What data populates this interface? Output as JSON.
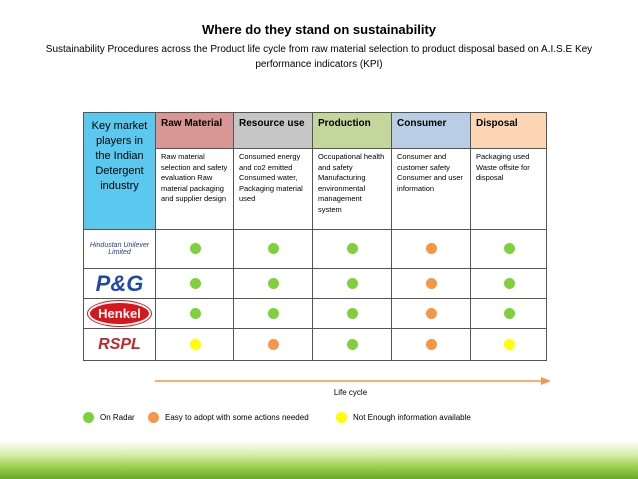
{
  "title": "Where do they stand on sustainability",
  "subtitle": "Sustainability Procedures across the Product life cycle from raw material selection to product disposal based on A.I.S.E Key performance indicators (KPI)",
  "table": {
    "corner": "Key market players in the Indian Detergent industry",
    "corner_color": "#5bc8ef",
    "columns": [
      {
        "name": "Raw Material",
        "color": "#d99694",
        "description": "Raw material selection and safety evaluation Raw material packaging and supplier design"
      },
      {
        "name": "Resource use",
        "color": "#c6c6c6",
        "description": "Consumed energy and co2 emitted Consumed water, Packaging material used"
      },
      {
        "name": "Production",
        "color": "#c3d69b",
        "description": "Occupational health and safety Manufacturing environmental management system"
      },
      {
        "name": "Consumer",
        "color": "#b9cde5",
        "description": "Consumer and customer safety Consumer and user information"
      },
      {
        "name": "Disposal",
        "color": "#fcd5b5",
        "description": "Packaging used Waste offsite for disposal"
      }
    ],
    "rows": [
      {
        "company": "Hindustan Unilever Limited",
        "dots": [
          "#7fd13b",
          "#7fd13b",
          "#7fd13b",
          "#f79646",
          "#7fd13b"
        ]
      },
      {
        "company": "P&G",
        "dots": [
          "#7fd13b",
          "#7fd13b",
          "#7fd13b",
          "#f79646",
          "#7fd13b"
        ]
      },
      {
        "company": "Henkel",
        "dots": [
          "#7fd13b",
          "#7fd13b",
          "#7fd13b",
          "#f79646",
          "#7fd13b"
        ]
      },
      {
        "company": "RSPL",
        "dots": [
          "#ffff00",
          "#f79646",
          "#7fd13b",
          "#f79646",
          "#ffff00"
        ]
      }
    ]
  },
  "axis_label": "Life cycle",
  "legend": [
    {
      "label": "On Radar",
      "color": "#7fd13b"
    },
    {
      "label": "Easy to adopt with some actions needed",
      "color": "#f79646"
    },
    {
      "label": "Not Enough information available",
      "color": "#ffff00"
    }
  ]
}
